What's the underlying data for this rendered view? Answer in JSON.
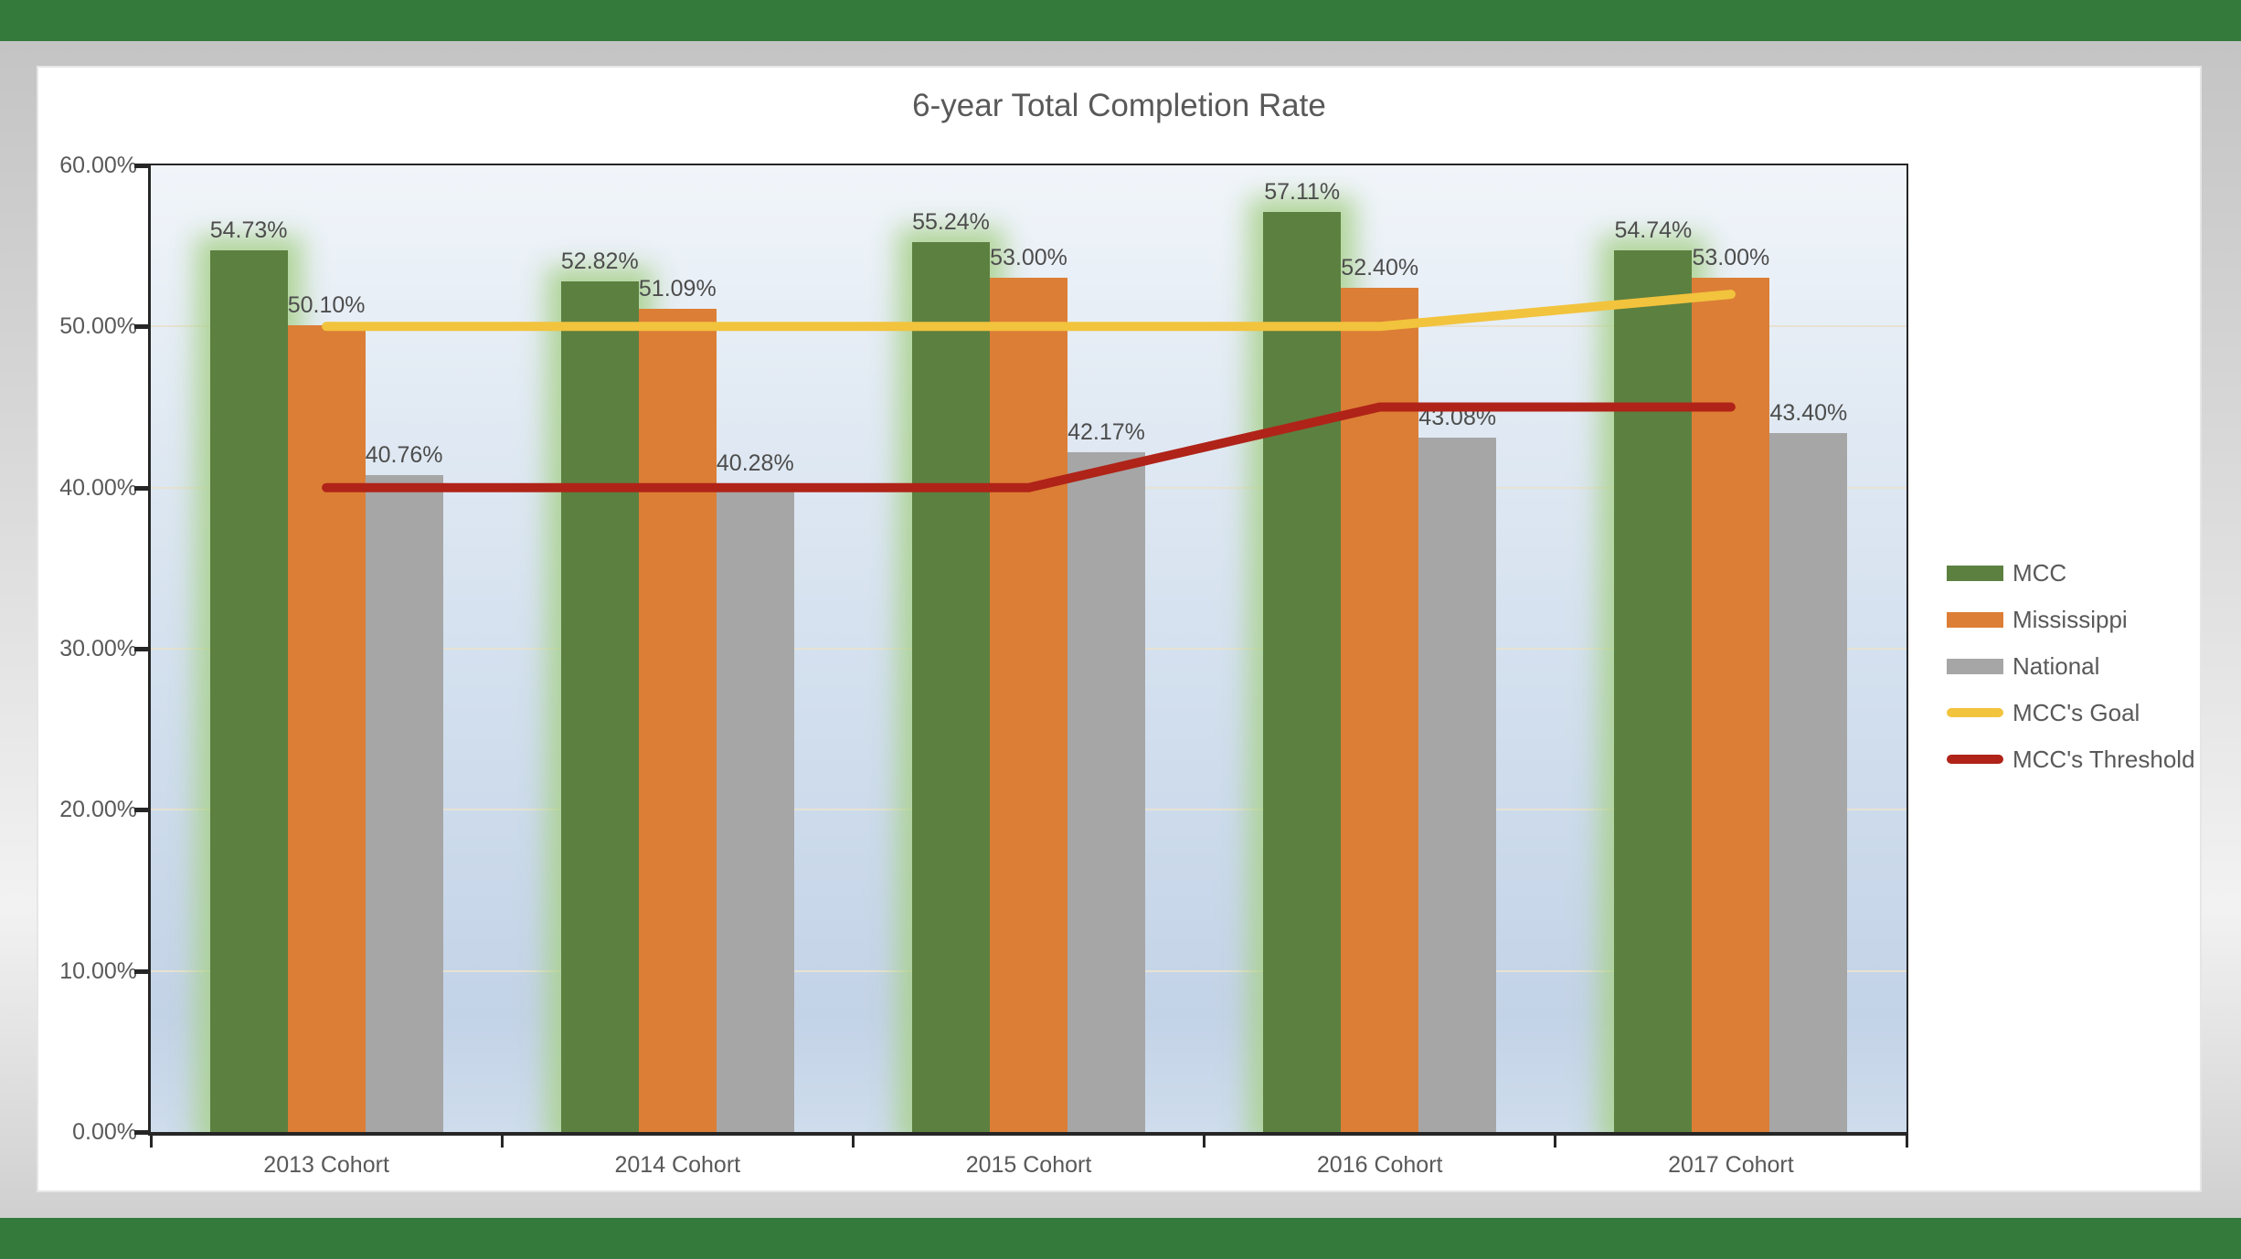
{
  "window": {
    "top_bar_color": "#337a3b",
    "bottom_bar_color": "#337a3b",
    "frame_color": "#cccccc",
    "card_color": "#ffffff"
  },
  "chart_data": {
    "type": "bar",
    "title": "6-year Total Completion Rate",
    "categories": [
      "2013 Cohort",
      "2014 Cohort",
      "2015 Cohort",
      "2016 Cohort",
      "2017 Cohort"
    ],
    "series": [
      {
        "name": "MCC",
        "type": "bar",
        "color": "#5c8040",
        "glow": true,
        "glow_color": "#a8cf8a",
        "values": [
          54.73,
          52.82,
          55.24,
          57.11,
          54.74
        ]
      },
      {
        "name": "Mississippi",
        "type": "bar",
        "color": "#dc7e36",
        "values": [
          50.1,
          51.09,
          53.0,
          52.4,
          53.0
        ]
      },
      {
        "name": "National",
        "type": "bar",
        "color": "#a6a6a6",
        "values": [
          40.76,
          40.28,
          42.17,
          43.08,
          43.4
        ]
      },
      {
        "name": "MCC's Goal",
        "type": "line",
        "color": "#f2c33d",
        "values": [
          50,
          50,
          50,
          50,
          52
        ]
      },
      {
        "name": "MCC's Threshold",
        "type": "line",
        "color": "#b02318",
        "values": [
          40,
          40,
          40,
          45,
          45
        ]
      }
    ],
    "y_axis": {
      "min": 0,
      "max": 60,
      "step": 10,
      "label_format": "0.00%"
    },
    "data_labels": {
      "bars": true,
      "lines": false,
      "decimals": 2,
      "suffix": "%"
    },
    "grid": true,
    "gridline_color": "#e8e2d2",
    "legend_position": "right",
    "text_color": "#595959",
    "data_label_color": "#4d4d4d"
  }
}
